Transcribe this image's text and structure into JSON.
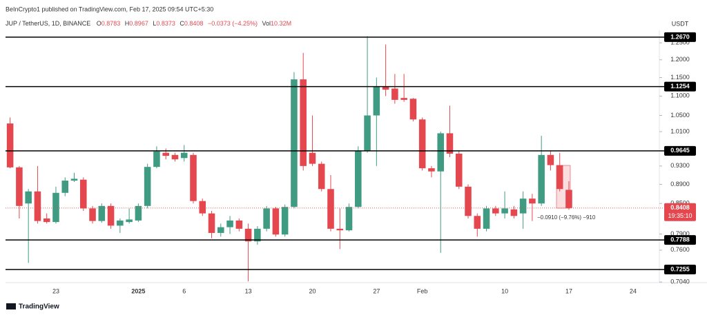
{
  "header": {
    "published": "BeInCrypto1 published on TradingView.com, Feb 17, 2025 09:54 UTC+5:30",
    "symbol": "JUP / TetherUS, 1D, BINANCE",
    "ohlc": [
      {
        "key": "O",
        "value": "0.8783"
      },
      {
        "key": "H",
        "value": "0.8967"
      },
      {
        "key": "L",
        "value": "0.8373"
      },
      {
        "key": "C",
        "value": "0.8408"
      }
    ],
    "change": "−0.0373 (−4.25%)",
    "volume": {
      "key": "Vol",
      "value": "10.32M"
    }
  },
  "footer": {
    "brand": "TradingView"
  },
  "chart_data": {
    "type": "candlestick",
    "currency": "USDT",
    "log_scale": true,
    "up_color": "#3f9c82",
    "down_color": "#e5474f",
    "categories": [
      null,
      null,
      null,
      null,
      null,
      "23",
      null,
      null,
      null,
      null,
      null,
      null,
      null,
      null,
      "2025",
      null,
      null,
      null,
      null,
      "6",
      null,
      null,
      null,
      null,
      null,
      null,
      "13",
      null,
      null,
      null,
      null,
      null,
      null,
      "20",
      null,
      null,
      null,
      null,
      null,
      null,
      "27",
      null,
      null,
      null,
      null,
      "Feb",
      null,
      null,
      null,
      null,
      null,
      null,
      null,
      null,
      "10",
      null,
      null,
      null,
      null,
      null,
      null,
      "17",
      null,
      null,
      null,
      null,
      null,
      null,
      "24",
      null,
      null
    ],
    "open": [
      1.03,
      0.927,
      0.85,
      0.875,
      0.82,
      0.813,
      0.872,
      0.898,
      0.9,
      0.84,
      0.815,
      0.845,
      0.806,
      0.813,
      0.816,
      0.845,
      0.928,
      0.96,
      0.955,
      0.948,
      0.955,
      0.855,
      0.83,
      0.792,
      0.803,
      0.816,
      0.8,
      0.776,
      0.8,
      0.84,
      0.789,
      0.843,
      1.145,
      0.96,
      0.935,
      0.88,
      0.8,
      0.797,
      0.843,
      0.965,
      1.05,
      1.125,
      1.12,
      1.095,
      1.093,
      1.04,
      0.925,
      0.918,
      1.006,
      0.958,
      0.885,
      0.825,
      0.8,
      0.84,
      0.83,
      0.838,
      0.83,
      0.86,
      0.85,
      0.955,
      0.932,
      0.8783,
      null,
      null,
      null,
      null,
      null,
      null,
      null,
      null,
      null
    ],
    "high": [
      1.045,
      0.93,
      0.88,
      0.93,
      0.83,
      0.885,
      0.905,
      0.915,
      0.905,
      0.845,
      0.85,
      0.85,
      0.82,
      0.84,
      0.85,
      0.935,
      0.975,
      0.97,
      0.96,
      0.978,
      0.96,
      0.86,
      0.835,
      0.81,
      0.825,
      0.82,
      0.81,
      0.805,
      0.845,
      0.843,
      0.848,
      1.165,
      1.22,
      1.05,
      0.94,
      0.91,
      0.84,
      0.85,
      0.975,
      1.27,
      1.15,
      1.245,
      1.16,
      1.16,
      1.095,
      1.045,
      0.93,
      1.01,
      1.075,
      0.965,
      0.89,
      0.83,
      0.845,
      0.845,
      0.875,
      0.845,
      0.875,
      0.87,
      1.0,
      0.965,
      0.96,
      0.8967,
      null,
      null,
      null,
      null,
      null,
      null,
      null,
      null,
      null
    ],
    "low": [
      0.925,
      0.82,
      0.737,
      0.81,
      0.81,
      0.81,
      0.865,
      0.895,
      0.835,
      0.81,
      0.812,
      0.8,
      0.792,
      0.81,
      0.813,
      0.84,
      0.925,
      0.945,
      0.94,
      0.94,
      0.85,
      0.825,
      0.782,
      0.785,
      0.79,
      0.795,
      0.705,
      0.77,
      0.795,
      0.785,
      0.785,
      0.84,
      0.92,
      0.93,
      0.875,
      0.795,
      0.762,
      0.795,
      0.84,
      0.96,
      0.93,
      1.1,
      1.08,
      1.085,
      1.035,
      0.92,
      0.905,
      0.755,
      0.95,
      0.88,
      0.82,
      0.785,
      0.795,
      0.825,
      0.82,
      0.82,
      0.8,
      0.815,
      0.845,
      0.92,
      0.875,
      0.8373,
      null,
      null,
      null,
      null,
      null,
      null,
      null,
      null,
      null
    ],
    "close": [
      0.927,
      0.845,
      0.875,
      0.815,
      0.813,
      0.872,
      0.898,
      0.902,
      0.84,
      0.815,
      0.845,
      0.806,
      0.816,
      0.818,
      0.845,
      0.928,
      0.963,
      0.953,
      0.945,
      0.96,
      0.855,
      0.83,
      0.792,
      0.803,
      0.816,
      0.8,
      0.776,
      0.8,
      0.84,
      0.789,
      0.843,
      1.145,
      0.93,
      0.935,
      0.88,
      0.8,
      0.797,
      0.843,
      0.965,
      1.05,
      1.125,
      1.117,
      1.09,
      1.09,
      1.04,
      0.925,
      0.918,
      1.006,
      0.958,
      0.885,
      0.825,
      0.8,
      0.84,
      0.83,
      0.84,
      0.825,
      0.86,
      0.85,
      0.955,
      0.932,
      0.88,
      0.8408,
      null,
      null,
      null,
      null,
      null,
      null,
      null,
      null,
      null
    ],
    "ylim": [
      0.703,
      1.288
    ],
    "yticks": [
      {
        "value": 1.25,
        "label": "1.2500"
      },
      {
        "value": 1.2,
        "label": "1.2000"
      },
      {
        "value": 1.15,
        "label": "1.1500"
      },
      {
        "value": 1.1,
        "label": "1.1000"
      },
      {
        "value": 1.05,
        "label": "1.0500"
      },
      {
        "value": 1.01,
        "label": "1.0100"
      },
      {
        "value": 0.93,
        "label": "0.9300"
      },
      {
        "value": 0.89,
        "label": "0.8900"
      },
      {
        "value": 0.85,
        "label": "0.8500"
      },
      {
        "value": 0.79,
        "label": "0.7900"
      },
      {
        "value": 0.76,
        "label": "0.7600"
      },
      {
        "value": 0.704,
        "label": "0.7040"
      }
    ],
    "levels": [
      {
        "value": 1.267,
        "label": "1.2670"
      },
      {
        "value": 1.1254,
        "label": "1.1254"
      },
      {
        "value": 0.9645,
        "label": "0.9645"
      },
      {
        "value": 0.7788,
        "label": "0.7788"
      },
      {
        "value": 0.7255,
        "label": "0.7255"
      }
    ],
    "last_price": {
      "value": 0.8408,
      "label": "0.8408",
      "countdown": "19:35:10"
    },
    "annotation": "−0.0910 (−9.76%) −910"
  }
}
